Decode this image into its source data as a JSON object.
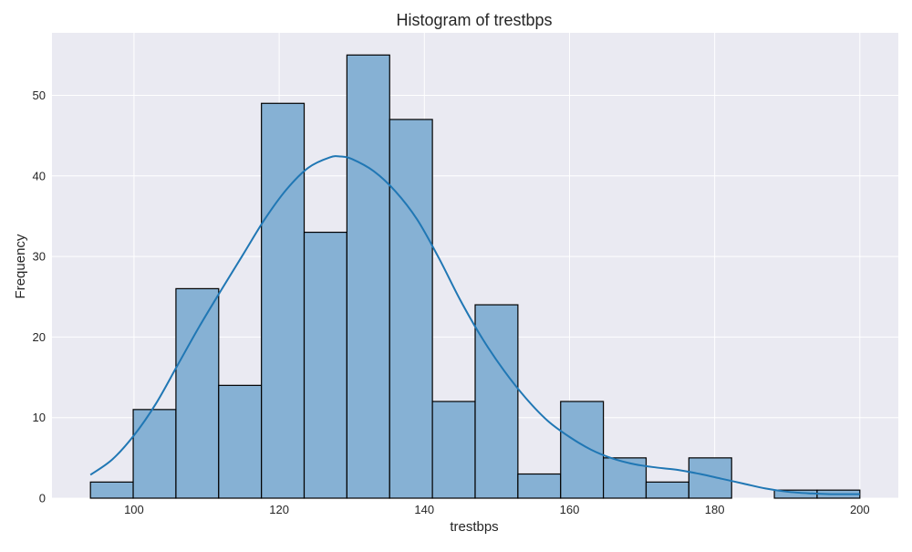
{
  "chart_data": {
    "type": "bar",
    "title": "Histogram of trestbps",
    "xlabel": "trestbps",
    "ylabel": "Frequency",
    "xlim": [
      88.7,
      205.3
    ],
    "ylim": [
      0,
      57.75
    ],
    "xticks": [
      100,
      120,
      140,
      160,
      180,
      200
    ],
    "yticks": [
      0,
      10,
      20,
      30,
      40,
      50
    ],
    "grid": true,
    "bin_edges": [
      94.0,
      99.889,
      105.778,
      111.667,
      117.556,
      123.444,
      129.333,
      135.222,
      141.111,
      147.0,
      152.889,
      158.778,
      164.667,
      170.556,
      176.444,
      182.333,
      188.222,
      194.111,
      200.0
    ],
    "values": [
      2,
      11,
      26,
      14,
      49,
      33,
      55,
      47,
      12,
      24,
      3,
      12,
      5,
      2,
      5,
      0,
      1,
      1
    ],
    "kde": {
      "x": [
        94,
        97,
        100,
        103,
        106,
        109,
        112,
        115,
        118,
        121,
        124,
        127,
        128.5,
        130,
        133,
        136,
        139,
        142,
        145,
        148,
        151,
        154,
        157,
        160,
        163,
        166,
        169,
        172,
        175,
        178,
        181,
        184,
        187,
        190,
        193,
        196,
        200
      ],
      "y": [
        2.9,
        4.8,
        7.8,
        11.7,
        16.5,
        21.3,
        25.8,
        30.2,
        34.6,
        38.3,
        41.0,
        42.3,
        42.4,
        42.1,
        40.6,
        38.1,
        34.6,
        29.8,
        24.5,
        19.8,
        15.8,
        12.4,
        9.6,
        7.6,
        6.0,
        4.9,
        4.2,
        3.8,
        3.5,
        3.0,
        2.4,
        1.8,
        1.2,
        0.8,
        0.6,
        0.5,
        0.5
      ]
    },
    "colors": {
      "bar_fill": "#86b1d4",
      "bar_edge": "#000000",
      "kde_line": "#2077b4",
      "plot_bg": "#eaeaf2",
      "grid": "#ffffff"
    }
  }
}
